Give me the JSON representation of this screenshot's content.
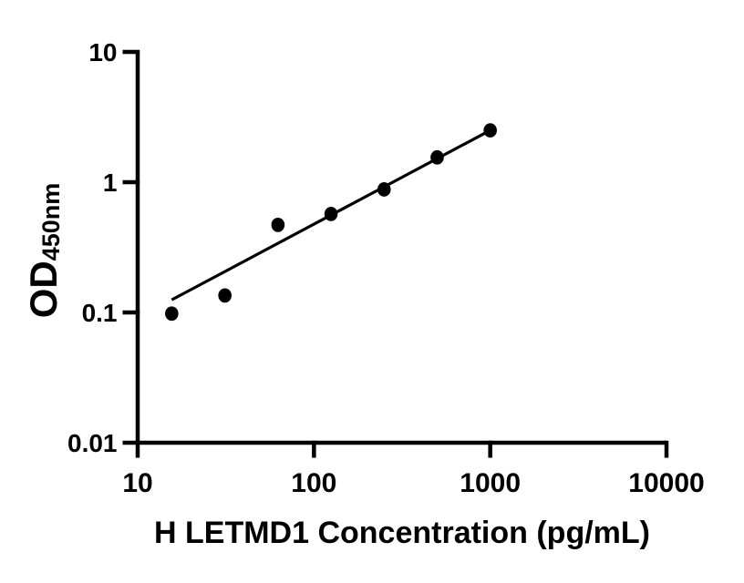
{
  "figure": {
    "background_color": "#ffffff",
    "ink_color": "#000000"
  },
  "chart_data": {
    "type": "scatter",
    "title": "",
    "xlabel": "H LETMD1 Concentration (pg/mL)",
    "ylabel_main": "OD",
    "ylabel_sub": "450nm",
    "x_scale": "log",
    "y_scale": "log",
    "xlim": [
      10,
      10000
    ],
    "ylim": [
      0.01,
      10
    ],
    "x_ticks": [
      10,
      100,
      1000,
      10000
    ],
    "x_tick_labels": [
      "10",
      "100",
      "1000",
      "10000"
    ],
    "y_ticks": [
      10,
      1,
      0.1,
      0.01
    ],
    "y_tick_labels": [
      "10",
      "1",
      "0.1",
      "0.01"
    ],
    "grid": false,
    "legend": false,
    "series": [
      {
        "name": "standard-curve-points",
        "marker": "filled-circle",
        "color": "#000000",
        "points": [
          {
            "x": 15.6,
            "y": 0.098
          },
          {
            "x": 31.25,
            "y": 0.135
          },
          {
            "x": 62.5,
            "y": 0.47
          },
          {
            "x": 125,
            "y": 0.57
          },
          {
            "x": 250,
            "y": 0.88
          },
          {
            "x": 500,
            "y": 1.55
          },
          {
            "x": 1000,
            "y": 2.5
          }
        ]
      }
    ],
    "trend_line": {
      "x1": 15.6,
      "y1": 0.125,
      "x2": 1000,
      "y2": 2.5
    }
  }
}
